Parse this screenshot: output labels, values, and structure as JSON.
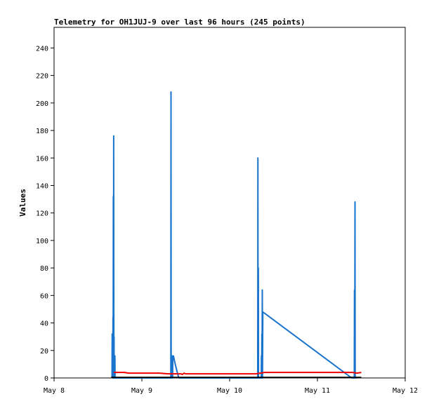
{
  "chart_data": {
    "type": "line",
    "title": "Telemetry for OH1JUJ-9 over last 96 hours (245 points)",
    "xlabel": "",
    "ylabel": "Values",
    "ylim": [
      0,
      255
    ],
    "y_ticks": [
      0,
      20,
      40,
      60,
      80,
      100,
      120,
      140,
      160,
      180,
      200,
      220,
      240
    ],
    "xlim": [
      "May 8",
      "May 12"
    ],
    "x_tick_labels": [
      "May 8",
      "May 9",
      "May 10",
      "May 11",
      "May 12"
    ],
    "x_unit": "days since May 8 00:00",
    "grid": false,
    "legend": "none",
    "series": [
      {
        "color": "#1874cd",
        "points": [
          [
            0.66,
            0
          ],
          [
            0.662,
            32
          ],
          [
            0.665,
            5
          ],
          [
            0.667,
            30
          ],
          [
            0.669,
            0
          ],
          [
            0.671,
            44
          ],
          [
            0.673,
            10
          ],
          [
            0.675,
            132
          ],
          [
            0.677,
            0
          ],
          [
            0.679,
            176
          ],
          [
            0.681,
            10
          ],
          [
            0.683,
            30
          ],
          [
            0.685,
            0
          ],
          [
            0.688,
            16
          ],
          [
            0.691,
            0
          ],
          [
            0.693,
            16
          ],
          [
            0.695,
            0
          ],
          [
            1.33,
            0
          ],
          [
            1.332,
            208
          ],
          [
            1.334,
            0
          ],
          [
            1.337,
            8
          ],
          [
            1.339,
            0
          ],
          [
            1.342,
            16
          ],
          [
            1.348,
            16
          ],
          [
            1.35,
            0
          ],
          [
            1.353,
            16
          ],
          [
            1.36,
            16
          ],
          [
            1.38,
            10
          ],
          [
            1.4,
            5
          ],
          [
            1.42,
            0
          ],
          [
            2.32,
            0
          ],
          [
            2.322,
            160
          ],
          [
            2.324,
            0
          ],
          [
            2.327,
            80
          ],
          [
            2.329,
            0
          ],
          [
            2.36,
            0
          ],
          [
            2.362,
            16
          ],
          [
            2.365,
            0
          ],
          [
            2.367,
            32
          ],
          [
            2.369,
            0
          ],
          [
            2.372,
            64
          ],
          [
            2.374,
            0
          ],
          [
            2.378,
            48
          ],
          [
            3.39,
            0
          ],
          [
            3.42,
            0
          ],
          [
            3.422,
            64
          ],
          [
            3.425,
            0
          ],
          [
            3.428,
            128
          ],
          [
            3.43,
            0
          ],
          [
            3.45,
            0
          ]
        ]
      },
      {
        "color": "#ee0000",
        "points": [
          [
            0.68,
            4
          ],
          [
            0.8,
            4
          ],
          [
            0.85,
            3.5
          ],
          [
            1.2,
            3.5
          ],
          [
            1.3,
            3
          ],
          [
            1.45,
            3
          ],
          [
            1.46,
            2.5
          ],
          [
            1.48,
            3.5
          ],
          [
            1.5,
            3
          ],
          [
            2.3,
            3
          ],
          [
            2.35,
            3.5
          ],
          [
            2.4,
            4
          ],
          [
            3.0,
            4
          ],
          [
            3.4,
            4
          ],
          [
            3.45,
            3.5
          ],
          [
            3.5,
            4
          ]
        ]
      },
      {
        "color": "#000000",
        "points": [
          [
            0.65,
            0.4
          ],
          [
            3.5,
            0.4
          ]
        ]
      }
    ]
  }
}
